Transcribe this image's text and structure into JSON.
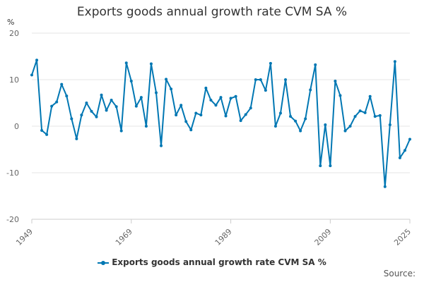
{
  "chart_data": {
    "type": "line",
    "title": "Exports goods annual growth rate CVM SA %",
    "ylabel": "%",
    "xlabel": "",
    "ylim": [
      -20,
      20
    ],
    "yticks": [
      20,
      10,
      0,
      -10,
      -20
    ],
    "xlim": [
      1949,
      2025
    ],
    "xticks": [
      1949,
      1969,
      1989,
      2009,
      2025
    ],
    "grid": true,
    "legend_position": "bottom",
    "series": [
      {
        "name": "Exports goods annual growth rate CVM SA %",
        "color": "#0077b3",
        "x": [
          1949,
          1950,
          1951,
          1952,
          1953,
          1954,
          1955,
          1956,
          1957,
          1958,
          1959,
          1960,
          1961,
          1962,
          1963,
          1964,
          1965,
          1966,
          1967,
          1968,
          1969,
          1970,
          1971,
          1972,
          1973,
          1974,
          1975,
          1976,
          1977,
          1978,
          1979,
          1980,
          1981,
          1982,
          1983,
          1984,
          1985,
          1986,
          1987,
          1988,
          1989,
          1990,
          1991,
          1992,
          1993,
          1994,
          1995,
          1996,
          1997,
          1998,
          1999,
          2000,
          2001,
          2002,
          2003,
          2004,
          2005,
          2006,
          2007,
          2008,
          2009,
          2010,
          2011,
          2012,
          2013,
          2014,
          2015,
          2016,
          2017,
          2018,
          2019,
          2020,
          2021,
          2022,
          2023,
          2024,
          2025
        ],
        "values": [
          11.0,
          14.2,
          -0.9,
          -1.8,
          4.3,
          5.2,
          9.0,
          6.5,
          1.6,
          -2.7,
          2.4,
          5.0,
          3.2,
          2.0,
          6.7,
          3.4,
          5.6,
          4.2,
          -1.0,
          13.6,
          9.7,
          4.3,
          6.2,
          0.0,
          13.4,
          7.2,
          -4.2,
          10.1,
          8.0,
          2.4,
          4.5,
          1.0,
          -0.8,
          2.8,
          2.4,
          8.2,
          5.6,
          4.5,
          6.2,
          2.2,
          6.0,
          6.4,
          1.2,
          2.5,
          3.9,
          10.0,
          10.0,
          7.7,
          13.5,
          0.0,
          2.8,
          10.0,
          2.1,
          1.1,
          -1.0,
          1.6,
          7.8,
          13.2,
          -8.5,
          0.3,
          -8.5,
          9.7,
          6.6,
          -1.0,
          0.0,
          2.1,
          3.3,
          2.9,
          6.4,
          2.1,
          2.3,
          -13.0,
          0.3,
          13.9,
          -6.8,
          -5.2,
          -2.8
        ]
      }
    ]
  },
  "legend": {
    "label": "Exports goods annual growth rate CVM SA %"
  },
  "footer": {
    "source": "Source:"
  }
}
